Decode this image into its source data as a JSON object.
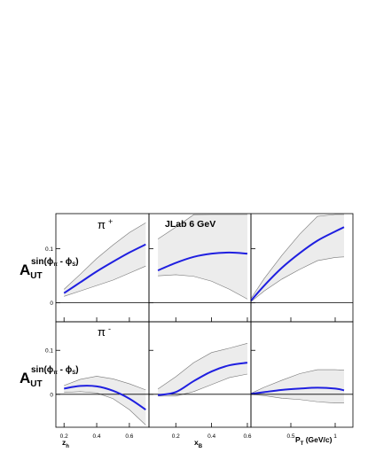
{
  "chart_data": {
    "type": "line",
    "colors": {
      "curve": "#1f1fe0",
      "band_fill": "#ececec",
      "band_edge": "#777777",
      "zero_line": "#000000"
    },
    "annotation": "JLab 6 GeV",
    "row_ylabel": {
      "main": "A",
      "sub": "UT",
      "sup": "sin(ϕ",
      "sup_pi": "π",
      "sup_mid": " - ϕ",
      "sup_s": "S",
      "sup_end": ")"
    },
    "columns": [
      {
        "xlabel": "z",
        "xlabel_sub": "h",
        "xlim": [
          0.15,
          0.72
        ],
        "xticks": [
          0.2,
          0.4,
          0.6
        ],
        "xtick_labels": [
          "0.2",
          "0.4",
          "0.6"
        ]
      },
      {
        "xlabel": "x",
        "xlabel_sub": "B",
        "xlim": [
          0.05,
          0.62
        ],
        "xticks": [
          0.2,
          0.4,
          0.6
        ],
        "xtick_labels": [
          "0.2",
          "0.4",
          "0.6"
        ]
      },
      {
        "xlabel": "P",
        "xlabel_sub": "T",
        "xlabel_rest": " (GeV/c)",
        "xlim": [
          0.05,
          1.2
        ],
        "xticks": [
          0.5,
          1
        ],
        "xtick_labels": [
          "0.5",
          "1"
        ]
      }
    ],
    "rows": [
      {
        "name": "π+",
        "label": "π",
        "label_sup": "+",
        "ylim": [
          -0.035,
          0.165
        ],
        "yticks": [
          0,
          0.1
        ],
        "ytick_labels": [
          "0",
          "0.1"
        ],
        "panels": [
          {
            "x": [
              0.2,
              0.3,
              0.4,
              0.5,
              0.6,
              0.7
            ],
            "y": [
              0.018,
              0.038,
              0.058,
              0.076,
              0.093,
              0.108
            ],
            "band_upper": [
              0.025,
              0.053,
              0.082,
              0.107,
              0.13,
              0.148
            ],
            "band_lower": [
              0.012,
              0.022,
              0.032,
              0.042,
              0.055,
              0.068
            ]
          },
          {
            "x": [
              0.1,
              0.2,
              0.3,
              0.4,
              0.5,
              0.6
            ],
            "y": [
              0.06,
              0.074,
              0.085,
              0.091,
              0.093,
              0.091
            ],
            "band_upper": [
              0.118,
              0.14,
              0.163,
              0.165,
              0.165,
              0.165
            ],
            "band_lower": [
              0.05,
              0.052,
              0.049,
              0.04,
              0.025,
              0.007
            ]
          },
          {
            "x": [
              0.05,
              0.2,
              0.4,
              0.6,
              0.8,
              1.0,
              1.1
            ],
            "y": [
              0.004,
              0.032,
              0.065,
              0.092,
              0.115,
              0.132,
              0.14
            ],
            "band_upper": [
              0.008,
              0.045,
              0.088,
              0.127,
              0.16,
              0.165,
              0.165
            ],
            "band_lower": [
              0.002,
              0.022,
              0.044,
              0.062,
              0.078,
              0.084,
              0.085
            ]
          }
        ]
      },
      {
        "name": "π-",
        "label": "π",
        "label_sup": "-",
        "ylim": [
          -0.075,
          0.165
        ],
        "yticks": [
          0,
          0.1
        ],
        "ytick_labels": [
          "0",
          "0.1"
        ],
        "panels": [
          {
            "x": [
              0.2,
              0.3,
              0.4,
              0.5,
              0.6,
              0.7
            ],
            "y": [
              0.013,
              0.019,
              0.018,
              0.008,
              -0.01,
              -0.035
            ],
            "band_upper": [
              0.02,
              0.034,
              0.041,
              0.035,
              0.024,
              0.01
            ],
            "band_lower": [
              0.004,
              0.006,
              0.003,
              -0.01,
              -0.035,
              -0.07
            ]
          },
          {
            "x": [
              0.1,
              0.2,
              0.3,
              0.4,
              0.5,
              0.6
            ],
            "y": [
              -0.002,
              0.005,
              0.03,
              0.052,
              0.066,
              0.072
            ],
            "band_upper": [
              0.012,
              0.04,
              0.072,
              0.095,
              0.105,
              0.116
            ],
            "band_lower": [
              -0.004,
              -0.004,
              0.006,
              0.022,
              0.038,
              0.046
            ]
          },
          {
            "x": [
              0.05,
              0.2,
              0.4,
              0.6,
              0.8,
              1.0,
              1.1
            ],
            "y": [
              0.001,
              0.005,
              0.01,
              0.013,
              0.015,
              0.013,
              0.009
            ],
            "band_upper": [
              0.002,
              0.016,
              0.032,
              0.047,
              0.056,
              0.056,
              0.055
            ],
            "band_lower": [
              0.0,
              -0.003,
              -0.009,
              -0.012,
              -0.017,
              -0.02,
              -0.02
            ]
          }
        ]
      }
    ]
  }
}
